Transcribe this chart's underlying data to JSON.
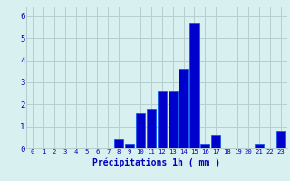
{
  "hours": [
    0,
    1,
    2,
    3,
    4,
    5,
    6,
    7,
    8,
    9,
    10,
    11,
    12,
    13,
    14,
    15,
    16,
    17,
    18,
    19,
    20,
    21,
    22,
    23
  ],
  "values": [
    0,
    0,
    0,
    0,
    0,
    0,
    0,
    0,
    0.4,
    0.2,
    1.6,
    1.8,
    2.6,
    2.6,
    3.6,
    5.7,
    0.2,
    0.6,
    0,
    0,
    0,
    0.2,
    0,
    0.8
  ],
  "bar_color": "#0000cc",
  "bar_edge_color": "#0055ee",
  "background_color": "#d8f0f0",
  "grid_color": "#b8cece",
  "xlabel": "Précipitations 1h ( mm )",
  "xlabel_color": "#0000bb",
  "tick_color": "#0000bb",
  "ylim": [
    0,
    6.4
  ],
  "yticks": [
    0,
    1,
    2,
    3,
    4,
    5,
    6
  ],
  "figsize": [
    3.2,
    2.0
  ],
  "dpi": 100
}
